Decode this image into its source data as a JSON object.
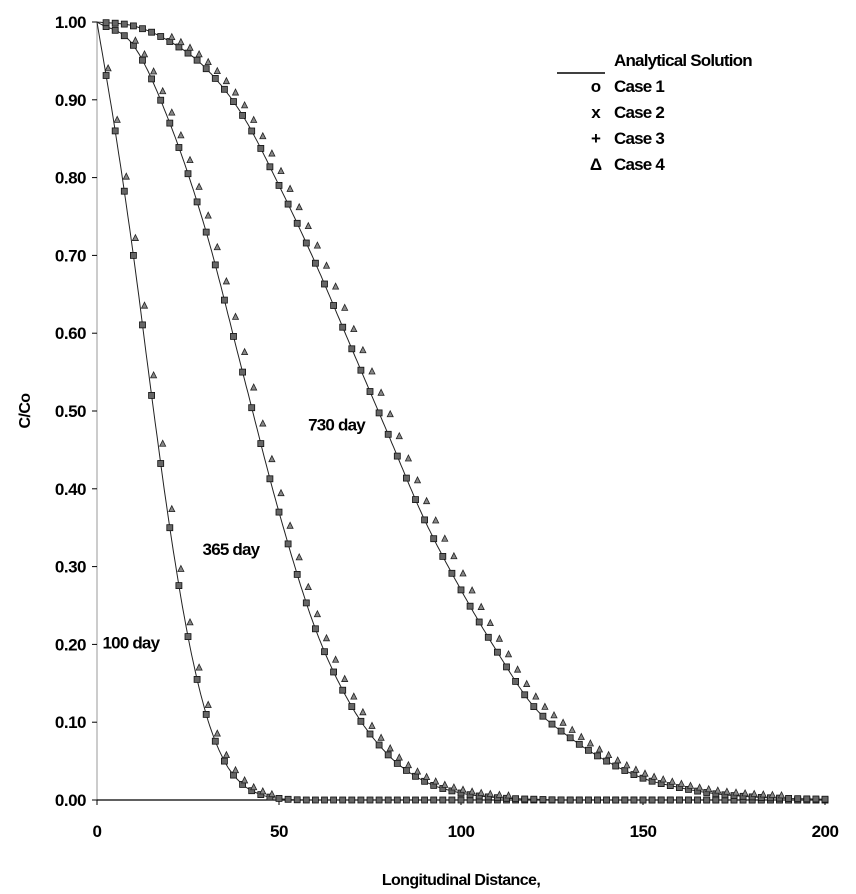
{
  "chart_data": {
    "type": "line",
    "title": "",
    "xlabel": "Longitudinal Distance,",
    "ylabel": "C/Co",
    "xlim": [
      0,
      200
    ],
    "ylim": [
      0,
      1
    ],
    "x_ticks": [
      "0",
      "50",
      "100",
      "150",
      "200"
    ],
    "y_ticks": [
      "0.00",
      "0.10",
      "0.20",
      "0.30",
      "0.40",
      "0.50",
      "0.60",
      "0.70",
      "0.80",
      "0.90",
      "1.00"
    ],
    "grid": false,
    "legend_position": "top-right",
    "legend": [
      {
        "symbol": "",
        "label": "Analytical Solution"
      },
      {
        "symbol": "o",
        "label": "Case 1"
      },
      {
        "symbol": "x",
        "label": "Case 2"
      },
      {
        "symbol": "+",
        "label": "Case 3"
      },
      {
        "symbol": "Δ",
        "label": "Case 4"
      }
    ],
    "annotations": [
      {
        "text": "100 day",
        "x": 1.5,
        "y": 0.195
      },
      {
        "text": "365 day",
        "x": 29,
        "y": 0.315
      },
      {
        "text": "730 day",
        "x": 58,
        "y": 0.475
      }
    ],
    "series": [
      {
        "time": "100 day",
        "x": [
          0,
          5,
          10,
          15,
          20,
          25,
          30,
          35,
          40,
          45,
          50,
          60,
          80,
          100,
          150,
          200
        ],
        "y": [
          1.0,
          0.86,
          0.7,
          0.52,
          0.35,
          0.21,
          0.11,
          0.05,
          0.02,
          0.007,
          0.002,
          0.0,
          0.0,
          0.0,
          0.0,
          0.0
        ]
      },
      {
        "time": "365 day",
        "x": [
          0,
          10,
          20,
          30,
          40,
          50,
          60,
          70,
          80,
          90,
          100,
          110,
          120,
          130,
          150,
          200
        ],
        "y": [
          1.0,
          0.97,
          0.87,
          0.73,
          0.55,
          0.37,
          0.22,
          0.12,
          0.058,
          0.024,
          0.009,
          0.003,
          0.001,
          0.0,
          0.0,
          0.0
        ]
      },
      {
        "time": "730 day",
        "x": [
          0,
          10,
          20,
          30,
          40,
          50,
          60,
          70,
          80,
          90,
          100,
          110,
          120,
          130,
          140,
          150,
          160,
          170,
          180,
          190,
          200
        ],
        "y": [
          1.0,
          0.995,
          0.975,
          0.94,
          0.88,
          0.79,
          0.69,
          0.58,
          0.47,
          0.36,
          0.27,
          0.19,
          0.12,
          0.08,
          0.05,
          0.028,
          0.016,
          0.008,
          0.004,
          0.002,
          0.001
        ]
      }
    ]
  }
}
